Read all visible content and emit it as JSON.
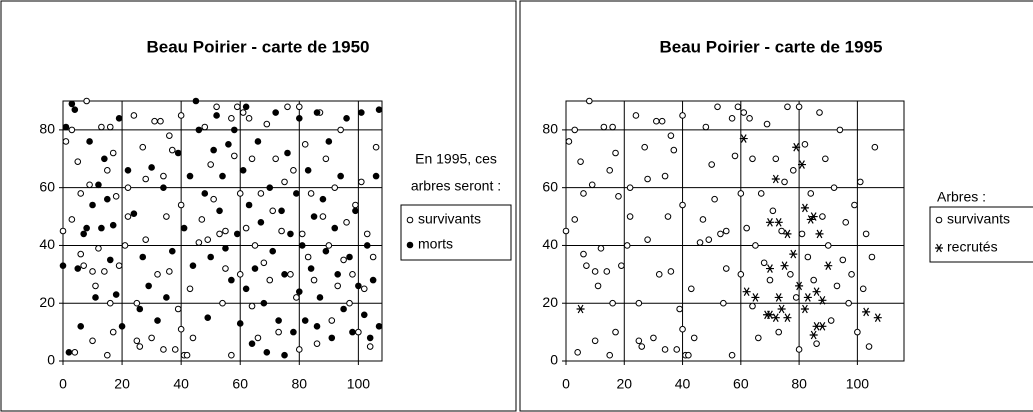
{
  "chart_data": [
    {
      "type": "scatter",
      "title": "Beau Poirier - carte de 1950",
      "legend_title": [
        "En 1995, ces",
        "arbres seront :"
      ],
      "legend": "right",
      "grid": true,
      "xlim": [
        0,
        108
      ],
      "ylim": [
        0,
        90
      ],
      "xticks": [
        0,
        20,
        40,
        60,
        80,
        100
      ],
      "yticks": [
        0,
        20,
        40,
        60,
        80
      ],
      "series": [
        {
          "name": "survivants",
          "marker": "circle-open",
          "color": "#000000",
          "x": [
            0,
            1,
            3,
            3,
            4,
            5,
            6,
            6,
            7,
            8,
            9,
            10,
            10,
            11,
            12,
            13,
            14,
            15,
            15,
            16,
            16,
            17,
            17,
            18,
            19,
            21,
            22,
            22,
            24,
            25,
            25,
            26,
            27,
            28,
            28,
            30,
            31,
            32,
            33,
            34,
            34,
            35,
            36,
            36,
            37,
            38,
            39,
            40,
            40,
            40,
            41,
            42,
            43,
            44,
            46,
            47,
            48,
            49,
            50,
            51,
            52,
            53,
            54,
            55,
            55,
            57,
            57,
            58,
            59,
            60,
            60,
            61,
            62,
            63,
            64,
            64,
            65,
            66,
            67,
            68,
            69,
            70,
            71,
            72,
            73,
            74,
            75,
            76,
            77,
            78,
            79,
            80,
            80,
            81,
            82,
            83,
            84,
            85,
            86,
            87,
            88,
            89,
            90,
            91,
            92,
            93,
            94,
            95,
            96,
            97,
            98,
            99,
            100,
            101,
            102,
            103,
            104,
            105,
            106
          ],
          "values": [
            45,
            76,
            80,
            49,
            3,
            69,
            58,
            37,
            33,
            90,
            61,
            31,
            7,
            26,
            39,
            81,
            31,
            66,
            2,
            81,
            20,
            72,
            10,
            57,
            33,
            40,
            50,
            60,
            85,
            20,
            7,
            5,
            74,
            63,
            42,
            8,
            83,
            30,
            83,
            64,
            4,
            50,
            78,
            31,
            73,
            4,
            18,
            85,
            54,
            11,
            2,
            2,
            25,
            8,
            41,
            49,
            81,
            42,
            68,
            56,
            88,
            44,
            20,
            45,
            32,
            84,
            2,
            71,
            88,
            30,
            58,
            86,
            46,
            84,
            70,
            19,
            40,
            8,
            58,
            34,
            82,
            28,
            52,
            70,
            10,
            45,
            62,
            88,
            30,
            66,
            22,
            88,
            4,
            44,
            75,
            36,
            58,
            28,
            6,
            86,
            50,
            70,
            40,
            14,
            60,
            26,
            80,
            35,
            48,
            20,
            30,
            54,
            10,
            62,
            25,
            44,
            5,
            36,
            74
          ]
        },
        {
          "name": "morts",
          "marker": "circle-filled",
          "color": "#000000",
          "x": [
            0,
            1,
            2,
            3,
            4,
            5,
            6,
            7,
            8,
            9,
            10,
            11,
            12,
            13,
            14,
            15,
            16,
            17,
            18,
            19,
            20,
            22,
            24,
            26,
            27,
            29,
            30,
            32,
            34,
            35,
            37,
            39,
            41,
            43,
            44,
            45,
            46,
            48,
            49,
            50,
            51,
            52,
            53,
            54,
            55,
            56,
            57,
            58,
            59,
            60,
            61,
            62,
            62,
            63,
            64,
            65,
            66,
            67,
            68,
            69,
            70,
            71,
            72,
            73,
            74,
            75,
            75,
            76,
            77,
            78,
            79,
            80,
            80,
            81,
            82,
            83,
            84,
            85,
            86,
            86,
            87,
            88,
            89,
            90,
            91,
            92,
            93,
            94,
            95,
            96,
            97,
            98,
            99,
            100,
            101,
            102,
            103,
            104,
            105,
            106,
            107,
            107
          ],
          "values": [
            33,
            81,
            3,
            89,
            87,
            32,
            12,
            44,
            46,
            76,
            54,
            22,
            61,
            46,
            70,
            56,
            35,
            47,
            23,
            84,
            12,
            66,
            51,
            18,
            36,
            26,
            67,
            14,
            60,
            22,
            38,
            72,
            46,
            64,
            33,
            90,
            80,
            58,
            15,
            36,
            73,
            85,
            52,
            64,
            39,
            75,
            28,
            80,
            44,
            13,
            66,
            25,
            88,
            54,
            6,
            32,
            76,
            48,
            20,
            3,
            60,
            38,
            86,
            14,
            52,
            2,
            30,
            72,
            44,
            10,
            58,
            24,
            84,
            40,
            14,
            66,
            32,
            50,
            12,
            86,
            22,
            56,
            38,
            76,
            8,
            46,
            30,
            64,
            18,
            84,
            36,
            10,
            52,
            26,
            86,
            16,
            40,
            8,
            28,
            64,
            12,
            87
          ]
        }
      ]
    },
    {
      "type": "scatter",
      "title": "Beau Poirier - carte de 1995",
      "legend_title": [
        "Arbres :"
      ],
      "legend": "right",
      "grid": true,
      "xlim": [
        0,
        116
      ],
      "ylim": [
        0,
        90
      ],
      "xticks": [
        0,
        20,
        40,
        60,
        80,
        100
      ],
      "yticks": [
        0,
        20,
        40,
        60,
        80
      ],
      "series": [
        {
          "name": "survivants",
          "marker": "circle-open",
          "color": "#000000",
          "x": [
            0,
            1,
            3,
            3,
            4,
            5,
            6,
            6,
            7,
            8,
            9,
            10,
            10,
            11,
            12,
            13,
            14,
            15,
            15,
            16,
            16,
            17,
            17,
            18,
            19,
            21,
            22,
            22,
            24,
            25,
            25,
            26,
            27,
            28,
            28,
            30,
            31,
            32,
            33,
            34,
            34,
            35,
            36,
            36,
            37,
            38,
            39,
            40,
            40,
            40,
            41,
            42,
            43,
            44,
            46,
            47,
            48,
            49,
            50,
            51,
            52,
            53,
            54,
            55,
            55,
            57,
            57,
            58,
            59,
            60,
            60,
            61,
            62,
            63,
            64,
            64,
            65,
            66,
            67,
            68,
            69,
            70,
            71,
            72,
            73,
            74,
            75,
            76,
            77,
            78,
            79,
            80,
            80,
            81,
            82,
            83,
            84,
            85,
            86,
            87,
            88,
            89,
            90,
            91,
            92,
            93,
            94,
            95,
            96,
            97,
            98,
            99,
            100,
            101,
            102,
            103,
            104,
            105,
            106
          ],
          "values": [
            45,
            76,
            80,
            49,
            3,
            69,
            58,
            37,
            33,
            90,
            61,
            31,
            7,
            26,
            39,
            81,
            31,
            66,
            2,
            81,
            20,
            72,
            10,
            57,
            33,
            40,
            50,
            60,
            85,
            20,
            7,
            5,
            74,
            63,
            42,
            8,
            83,
            30,
            83,
            64,
            4,
            50,
            78,
            31,
            73,
            4,
            18,
            85,
            54,
            11,
            2,
            2,
            25,
            8,
            41,
            49,
            81,
            42,
            68,
            56,
            88,
            44,
            20,
            45,
            32,
            84,
            2,
            71,
            88,
            30,
            58,
            86,
            46,
            84,
            70,
            19,
            40,
            8,
            58,
            34,
            82,
            28,
            52,
            70,
            10,
            45,
            62,
            88,
            30,
            66,
            22,
            88,
            4,
            44,
            75,
            36,
            58,
            28,
            6,
            86,
            50,
            70,
            40,
            14,
            60,
            26,
            80,
            35,
            48,
            20,
            30,
            54,
            10,
            62,
            25,
            44,
            5,
            36,
            74
          ]
        },
        {
          "name": "recrutés",
          "marker": "asterisk",
          "color": "#000000",
          "x": [
            61,
            79,
            81,
            72,
            82,
            70,
            73,
            84,
            85,
            76,
            87,
            78,
            75,
            70,
            90,
            80,
            62,
            65,
            73,
            83,
            86,
            88,
            74,
            82,
            70,
            72,
            76,
            86,
            88,
            85,
            103,
            107,
            5,
            69
          ],
          "values": [
            77,
            74,
            68,
            63,
            53,
            48,
            48,
            49,
            50,
            44,
            44,
            37,
            33,
            32,
            33,
            26,
            24,
            22,
            22,
            22,
            24,
            21,
            18,
            18,
            16,
            15,
            15,
            12,
            12,
            9,
            17,
            15,
            18,
            16
          ]
        }
      ]
    }
  ]
}
